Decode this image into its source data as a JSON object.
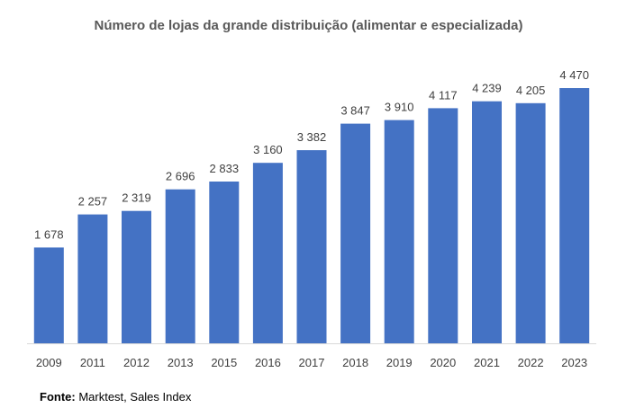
{
  "chart_data": {
    "type": "bar",
    "title": "Número de lojas da grande distribuição (alimentar e especializada)",
    "categories": [
      "2009",
      "2011",
      "2012",
      "2013",
      "2015",
      "2016",
      "2017",
      "2018",
      "2019",
      "2020",
      "2021",
      "2022",
      "2023"
    ],
    "values": [
      1678,
      2257,
      2319,
      2696,
      2833,
      3160,
      3382,
      3847,
      3910,
      4117,
      4239,
      4205,
      4470
    ],
    "value_labels": [
      "1 678",
      "2 257",
      "2 319",
      "2 696",
      "2 833",
      "3 160",
      "3 382",
      "3 847",
      "3 910",
      "4 117",
      "4 239",
      "4 205",
      "4 470"
    ],
    "xlabel": "",
    "ylabel": "",
    "ylim": [
      0,
      5000
    ],
    "grid": false,
    "legend": "none",
    "bar_color": "#4472c4"
  },
  "source": {
    "label": "Fonte:",
    "text": " Marktest, Sales Index"
  }
}
